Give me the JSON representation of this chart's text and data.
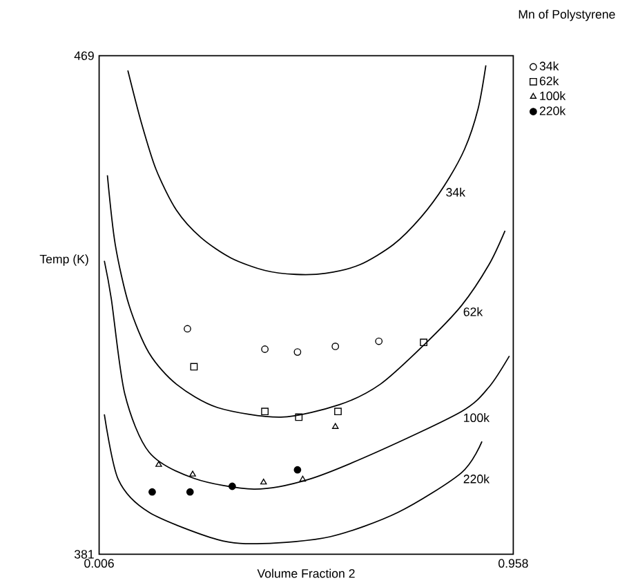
{
  "chart_data": {
    "type": "scatter",
    "xlabel": "Volume Fraction 2",
    "ylabel": "Temp (K)",
    "legend_title": "Mn of Polystyrene",
    "legend": "top right",
    "xlim": [
      0.006,
      0.958
    ],
    "ylim": [
      381,
      469
    ],
    "xticks": [
      0.006,
      0.958
    ],
    "yticks": [
      469,
      381
    ],
    "series": [
      {
        "name": "34k",
        "marker": "circle",
        "color": "#000000",
        "x": [
          0.209,
          0.387,
          0.462,
          0.549,
          0.649
        ],
        "values": [
          420.8,
          417.2,
          416.7,
          417.7,
          418.6
        ]
      },
      {
        "name": "62k",
        "marker": "square",
        "color": "#000000",
        "x": [
          0.224,
          0.387,
          0.465,
          0.555,
          0.752
        ],
        "values": [
          414.1,
          406.2,
          405.2,
          406.2,
          418.4
        ]
      },
      {
        "name": "100k",
        "marker": "triangle",
        "color": "#000000",
        "x": [
          0.143,
          0.221,
          0.384,
          0.474,
          0.549
        ],
        "values": [
          396.8,
          395.1,
          393.7,
          394.2,
          403.5
        ]
      },
      {
        "name": "220k",
        "marker": "filled circle",
        "color": "#000000",
        "x": [
          0.128,
          0.215,
          0.312,
          0.462
        ],
        "values": [
          392.0,
          392.0,
          393.0,
          395.9
        ]
      },
      {
        "name": "34k",
        "type": "line",
        "marker": "none",
        "color": "#000000",
        "x": [
          0.072,
          0.103,
          0.137,
          0.184,
          0.24,
          0.309,
          0.387,
          0.459,
          0.527,
          0.605,
          0.683,
          0.746,
          0.799,
          0.846,
          0.877,
          0.895
        ],
        "values": [
          466.4,
          457.2,
          448.9,
          441.7,
          436.9,
          433.3,
          431.1,
          430.4,
          430.6,
          432.1,
          435.7,
          440.5,
          446.0,
          452.5,
          459.6,
          467.3
        ]
      },
      {
        "name": "62k",
        "type": "line",
        "marker": "none",
        "color": "#000000",
        "x": [
          0.025,
          0.043,
          0.075,
          0.121,
          0.184,
          0.278,
          0.424,
          0.558,
          0.652,
          0.752,
          0.839,
          0.902,
          0.939
        ],
        "values": [
          447.9,
          435.7,
          424.9,
          416.5,
          411.0,
          406.9,
          405.2,
          407.4,
          411.0,
          417.9,
          424.9,
          432.1,
          438.1
        ]
      },
      {
        "name": "100k",
        "type": "line",
        "marker": "none",
        "color": "#000000",
        "x": [
          0.018,
          0.034,
          0.065,
          0.121,
          0.224,
          0.362,
          0.487,
          0.643,
          0.839,
          0.902,
          0.949
        ],
        "values": [
          432.8,
          426.1,
          409.3,
          399.0,
          394.4,
          392.5,
          394.2,
          399.0,
          406.2,
          410.5,
          416.0
        ]
      },
      {
        "name": "220k",
        "type": "line",
        "marker": "none",
        "color": "#000000",
        "x": [
          0.018,
          0.05,
          0.121,
          0.278,
          0.381,
          0.537,
          0.693,
          0.839,
          0.886
        ],
        "values": [
          405.7,
          394.2,
          388.4,
          383.6,
          382.9,
          384.1,
          388.4,
          395.4,
          400.9
        ]
      }
    ]
  }
}
